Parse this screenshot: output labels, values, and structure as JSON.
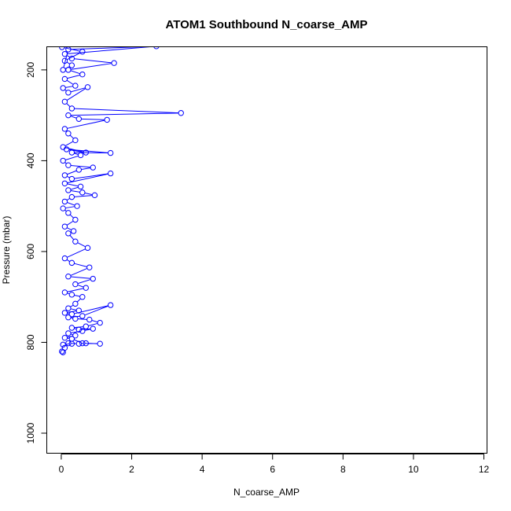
{
  "chart_data": {
    "type": "line",
    "title": "ATOM1 Southbound N_coarse_AMP",
    "xlabel": "N_coarse_AMP",
    "ylabel": "Pressure (mbar)",
    "xlim": [
      -0.4,
      12.1
    ],
    "ylim": [
      1045,
      150
    ],
    "y_inverted": true,
    "x_ticks": [
      0,
      2,
      4,
      6,
      8,
      10,
      12
    ],
    "x_tick_labels": [
      "0",
      "2",
      "4",
      "6",
      "8",
      "10",
      "12"
    ],
    "y_ticks": [
      200,
      400,
      600,
      800,
      1000
    ],
    "y_tick_labels": [
      "200",
      "400",
      "600",
      "800",
      "1000"
    ],
    "grid": false,
    "legend": "none",
    "marker": "open-circle",
    "color": "#0000ff",
    "series": [
      {
        "points": [
          [
            0.05,
            822
          ],
          [
            0.02,
            820
          ],
          [
            0.1,
            812
          ],
          [
            0.05,
            805
          ],
          [
            0.3,
            803
          ],
          [
            0.2,
            802
          ],
          [
            0.5,
            803
          ],
          [
            0.7,
            802
          ],
          [
            1.1,
            803
          ],
          [
            0.6,
            802
          ],
          [
            0.3,
            792
          ],
          [
            0.1,
            790
          ],
          [
            0.4,
            785
          ],
          [
            0.2,
            780
          ],
          [
            0.6,
            775
          ],
          [
            0.9,
            770
          ],
          [
            0.5,
            772
          ],
          [
            0.3,
            768
          ],
          [
            0.7,
            765
          ],
          [
            1.1,
            757
          ],
          [
            0.8,
            750
          ],
          [
            0.4,
            748
          ],
          [
            0.2,
            745
          ],
          [
            0.6,
            742
          ],
          [
            1.4,
            718
          ],
          [
            0.3,
            738
          ],
          [
            0.1,
            735
          ],
          [
            0.5,
            730
          ],
          [
            0.2,
            725
          ],
          [
            0.4,
            715
          ],
          [
            0.6,
            700
          ],
          [
            0.3,
            695
          ],
          [
            0.1,
            690
          ],
          [
            0.7,
            680
          ],
          [
            0.4,
            672
          ],
          [
            0.9,
            660
          ],
          [
            0.2,
            655
          ],
          [
            0.8,
            635
          ],
          [
            0.3,
            625
          ],
          [
            0.1,
            615
          ],
          [
            0.75,
            592
          ],
          [
            0.4,
            578
          ],
          [
            0.2,
            560
          ],
          [
            0.35,
            555
          ],
          [
            0.1,
            545
          ],
          [
            0.4,
            530
          ],
          [
            0.2,
            515
          ],
          [
            0.05,
            505
          ],
          [
            0.45,
            500
          ],
          [
            0.1,
            490
          ],
          [
            0.3,
            480
          ],
          [
            0.95,
            476
          ],
          [
            0.6,
            470
          ],
          [
            0.2,
            465
          ],
          [
            0.55,
            457
          ],
          [
            0.1,
            450
          ],
          [
            1.4,
            428
          ],
          [
            0.3,
            440
          ],
          [
            0.1,
            432
          ],
          [
            0.5,
            420
          ],
          [
            0.9,
            415
          ],
          [
            0.2,
            410
          ],
          [
            0.05,
            400
          ],
          [
            0.55,
            388
          ],
          [
            0.3,
            382
          ],
          [
            1.4,
            383
          ],
          [
            0.15,
            375
          ],
          [
            0.7,
            382
          ],
          [
            0.05,
            370
          ],
          [
            0.4,
            355
          ],
          [
            0.2,
            340
          ],
          [
            0.1,
            330
          ],
          [
            1.3,
            310
          ],
          [
            0.5,
            308
          ],
          [
            0.2,
            300
          ],
          [
            3.4,
            295
          ],
          [
            0.3,
            285
          ],
          [
            0.1,
            270
          ],
          [
            0.75,
            238
          ],
          [
            0.2,
            250
          ],
          [
            0.05,
            240
          ],
          [
            0.4,
            235
          ],
          [
            0.1,
            220
          ],
          [
            0.6,
            210
          ],
          [
            0.2,
            200
          ],
          [
            1.5,
            185
          ],
          [
            0.3,
            175
          ],
          [
            0.1,
            165
          ],
          [
            2.7,
            148
          ],
          [
            0.2,
            155
          ],
          [
            0.05,
            200
          ],
          [
            0.3,
            190
          ],
          [
            0.1,
            180
          ],
          [
            0.6,
            160
          ],
          [
            0.02,
            150
          ]
        ]
      }
    ]
  }
}
